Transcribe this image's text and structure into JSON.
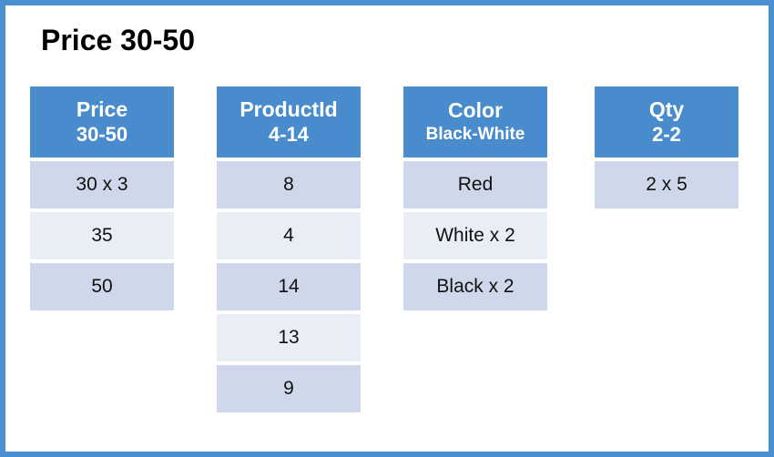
{
  "title": "Price 30-50",
  "colors": {
    "frame_border": "#4A90D0",
    "header_bg": "#498CCD",
    "header_text": "#FFFFFF",
    "row_dark_bg": "#CED8EA",
    "row_light_bg": "#E9EDF5",
    "cell_text": "#111111",
    "title_text": "#000000",
    "background": "#FFFFFF"
  },
  "tables": [
    {
      "id": "price",
      "header_line1": "Price",
      "header_line2": "30-50",
      "rows": [
        "30 x 3",
        "35",
        "50"
      ]
    },
    {
      "id": "product-id",
      "header_line1": "ProductId",
      "header_line2": "4-14",
      "rows": [
        "8",
        "4",
        "14",
        "13",
        "9"
      ]
    },
    {
      "id": "color",
      "header_line1": "Color",
      "header_line2": "Black-White",
      "rows": [
        "Red",
        "White x 2",
        "Black x 2"
      ]
    },
    {
      "id": "qty",
      "header_line1": "Qty",
      "header_line2": "2-2",
      "rows": [
        "2 x 5"
      ]
    }
  ]
}
